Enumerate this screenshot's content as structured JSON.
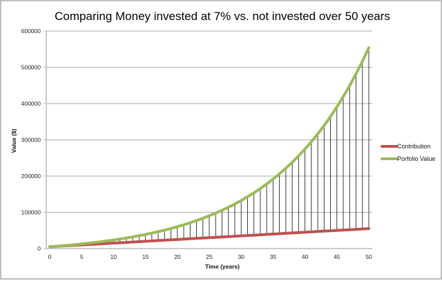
{
  "chart_data": {
    "type": "line",
    "title": "Comparing Money invested at 7% vs. not invested over 50 years",
    "xlabel": "Time (years)",
    "ylabel": "Value ($)",
    "xlim": [
      0,
      50
    ],
    "ylim": [
      0,
      600000
    ],
    "x_ticks": [
      0,
      5,
      10,
      15,
      20,
      25,
      30,
      35,
      40,
      45,
      50
    ],
    "y_ticks": [
      0,
      100000,
      200000,
      300000,
      400000,
      500000,
      600000
    ],
    "grid": {
      "horizontal": true,
      "vertical": false
    },
    "legend_position": "right",
    "drop_lines": true,
    "x": [
      0,
      1,
      2,
      3,
      4,
      5,
      6,
      7,
      8,
      9,
      10,
      11,
      12,
      13,
      14,
      15,
      16,
      17,
      18,
      19,
      20,
      21,
      22,
      23,
      24,
      25,
      26,
      27,
      28,
      29,
      30,
      31,
      32,
      33,
      34,
      35,
      36,
      37,
      38,
      39,
      40,
      41,
      42,
      43,
      44,
      45,
      46,
      47,
      48,
      49,
      50
    ],
    "series": [
      {
        "name": "Contribution",
        "color": "#c0504d",
        "values": [
          5000,
          6000,
          7000,
          8000,
          9000,
          10000,
          11000,
          12000,
          13000,
          14000,
          15000,
          16000,
          17000,
          18000,
          19000,
          20000,
          21000,
          22000,
          23000,
          24000,
          25000,
          26000,
          27000,
          28000,
          29000,
          30000,
          31000,
          32000,
          33000,
          34000,
          35000,
          36000,
          37000,
          38000,
          39000,
          40000,
          41000,
          42000,
          43000,
          44000,
          45000,
          46000,
          47000,
          48000,
          49000,
          50000,
          51000,
          52000,
          53000,
          54000,
          55000
        ]
      },
      {
        "name": "Porfolio Value",
        "color": "#9bbb59",
        "values": [
          5000,
          6350,
          7795,
          9340,
          10994,
          12764,
          14657,
          16683,
          18851,
          21170,
          23652,
          26308,
          29150,
          32190,
          35443,
          38924,
          42649,
          46634,
          50899,
          55462,
          60344,
          65568,
          71158,
          77139,
          83539,
          90386,
          97713,
          105553,
          113942,
          122917,
          132522,
          142799,
          153794,
          165560,
          178150,
          191620,
          206033,
          221455,
          237957,
          255614,
          274507,
          294723,
          316353,
          339498,
          364263,
          390761,
          419115,
          449453,
          481915,
          516649,
          553814
        ]
      }
    ]
  },
  "labels": {
    "title": "Comparing Money invested at 7% vs. not invested over 50 years",
    "xlabel": "Time (years)",
    "ylabel": "Value ($)",
    "legend": [
      "Contribution",
      "Porfolio Value"
    ]
  }
}
